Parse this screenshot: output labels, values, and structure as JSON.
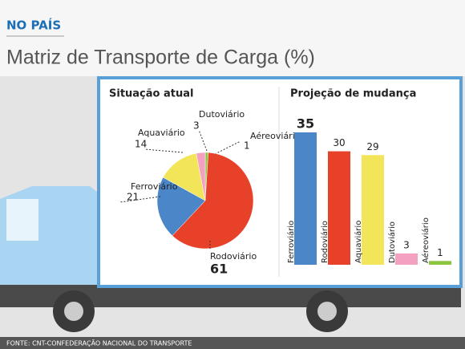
{
  "kicker": "NO PAÍS",
  "title": "Matriz de Transporte de Carga (%)",
  "source": "FONTE: CNT-CONFEDERAÇÃO NACIONAL DO TRANSPORTE",
  "chart_data": [
    {
      "type": "pie",
      "title": "Situação atual",
      "categories": [
        "Aéreoviário",
        "Rodoviário",
        "Ferroviário",
        "Aquaviário",
        "Dutoviário"
      ],
      "values": [
        1,
        61,
        21,
        14,
        3
      ],
      "colors": [
        "#8cc63f",
        "#e8412a",
        "#4a86c8",
        "#f3e55a",
        "#f4a0c0"
      ]
    },
    {
      "type": "bar",
      "title": "Projeção de mudança",
      "categories": [
        "Ferroviário",
        "Rodoviário",
        "Aquaviário",
        "Dutoviário",
        "Aéreoviário"
      ],
      "values": [
        35,
        30,
        29,
        3,
        1
      ],
      "colors": [
        "#4a86c8",
        "#e8412a",
        "#f3e55a",
        "#f4a0c0",
        "#8cc63f"
      ]
    }
  ]
}
